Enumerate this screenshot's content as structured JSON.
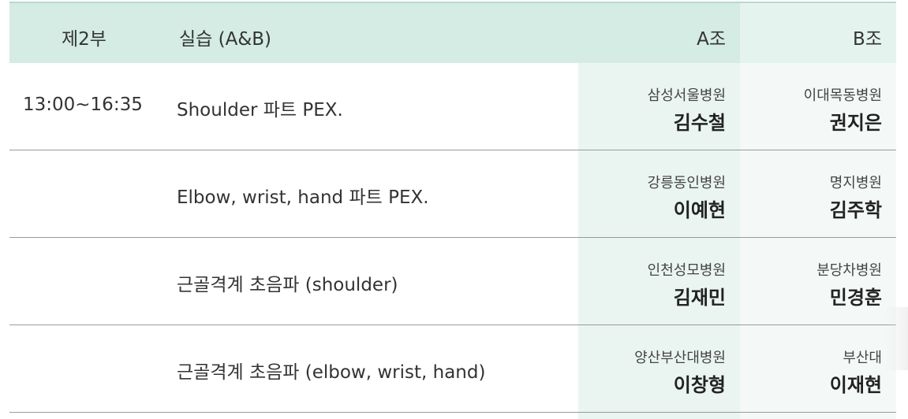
{
  "header": {
    "part": "제2부",
    "title": "실습 (A&B)",
    "group_a": "A조",
    "group_b": "B조"
  },
  "rows": [
    {
      "time": "13:00~16:35",
      "title": "Shoulder 파트 PEX.",
      "a_hospital": "삼성서울병원",
      "a_name": "김수철",
      "b_hospital": "이대목동병원",
      "b_name": "권지은"
    },
    {
      "time": "",
      "title": "Elbow, wrist, hand 파트 PEX.",
      "a_hospital": "강릉동인병원",
      "a_name": "이예현",
      "b_hospital": "명지병원",
      "b_name": "김주학"
    },
    {
      "time": "",
      "title": "근골격계 초음파 (shoulder)",
      "a_hospital": "인천성모병원",
      "a_name": "김재민",
      "b_hospital": "분당차병원",
      "b_name": "민경훈"
    },
    {
      "time": "",
      "title": "근골격계 초음파 (elbow, wrist, hand)",
      "a_hospital": "양산부산대병원",
      "a_name": "이창형",
      "b_hospital": "부산대",
      "b_name": "이재현"
    }
  ],
  "colors": {
    "header_bg": "#d4ece4",
    "header_b_bg": "#e5f3ee",
    "col_a_bg": "#eaf5f1",
    "col_b_bg": "#f4f9f7",
    "separator": "#9a9a9a"
  }
}
